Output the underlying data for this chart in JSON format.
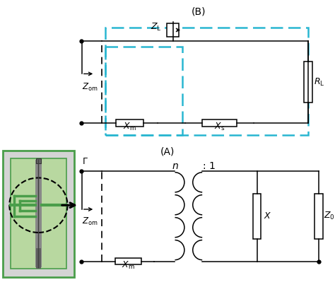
{
  "green_border": "#4a9e4a",
  "green_fill": "#b8d8a0",
  "gray_panel": "#d4d4d4",
  "cyan": "#29b6d1",
  "black": "#000000",
  "white": "#ffffff",
  "dark_gray": "#606060",
  "mid_gray": "#888888",
  "figsize": [
    4.74,
    4.13
  ],
  "dpi": 100
}
